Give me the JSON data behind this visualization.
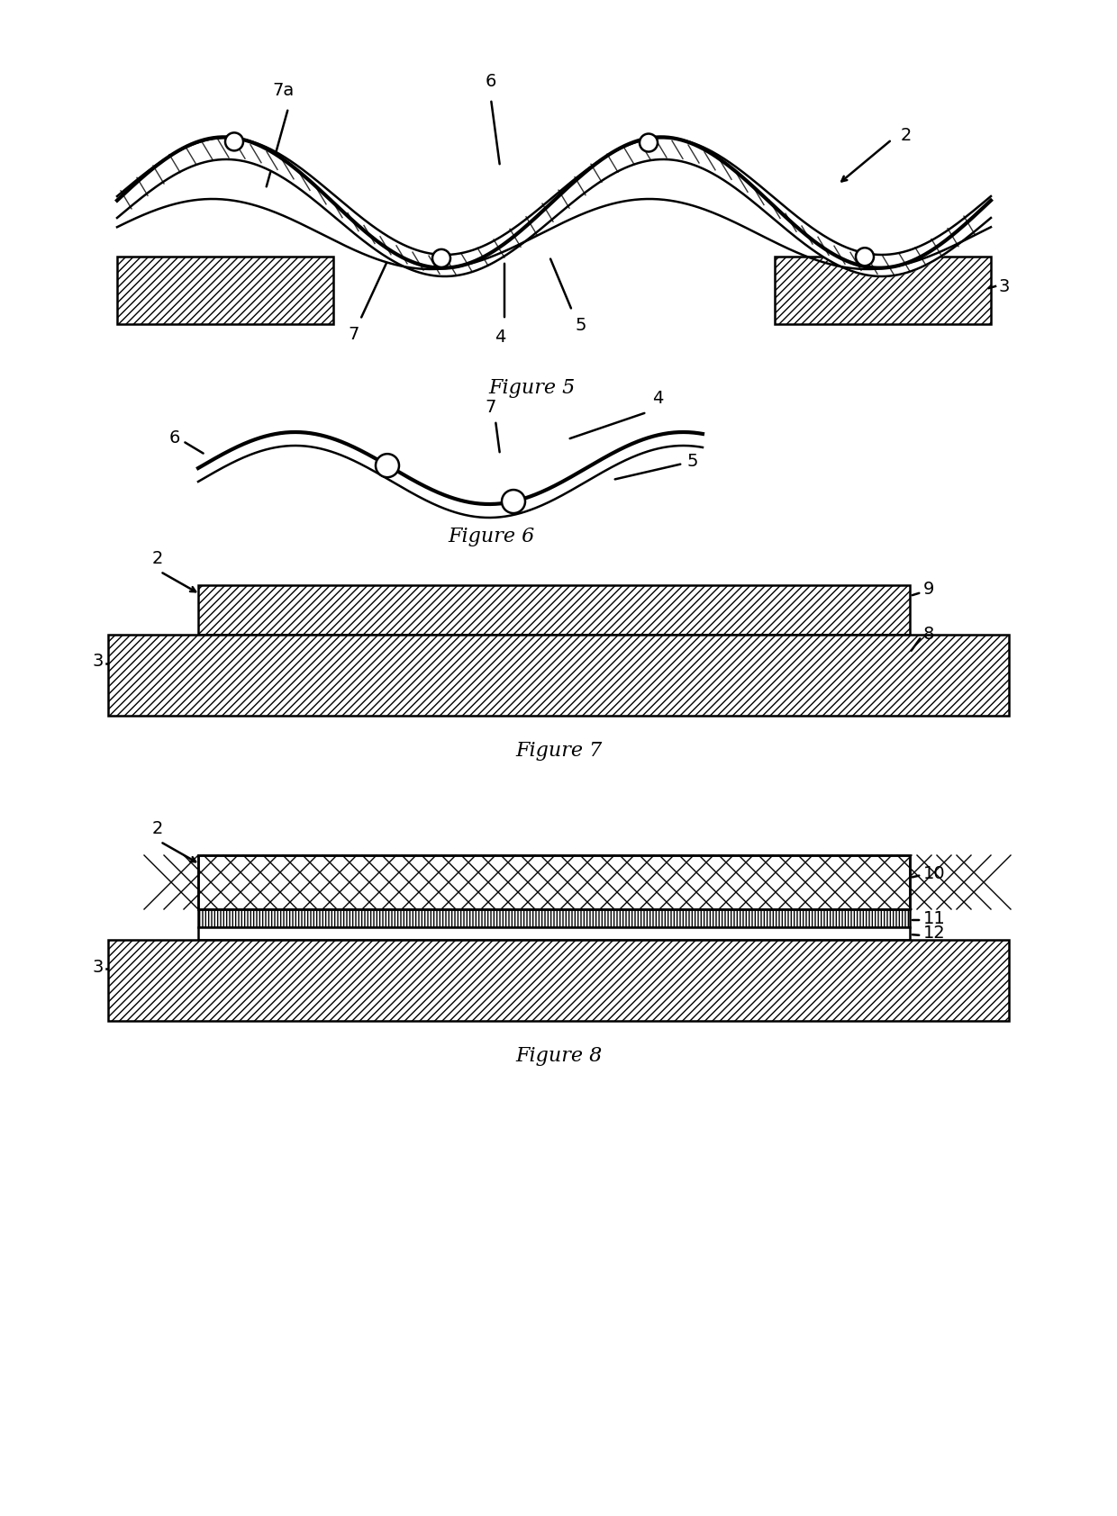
{
  "fig_width": 12.4,
  "fig_height": 16.84,
  "bg_color": "#ffffff",
  "line_color": "#000000",
  "fig5_caption": "Figure 5",
  "fig6_caption": "Figure 6",
  "fig7_caption": "Figure 7",
  "fig8_caption": "Figure 8",
  "lw_thin": 1.0,
  "lw_med": 1.8,
  "lw_thick": 3.0,
  "font_size_label": 14,
  "font_size_caption": 16
}
